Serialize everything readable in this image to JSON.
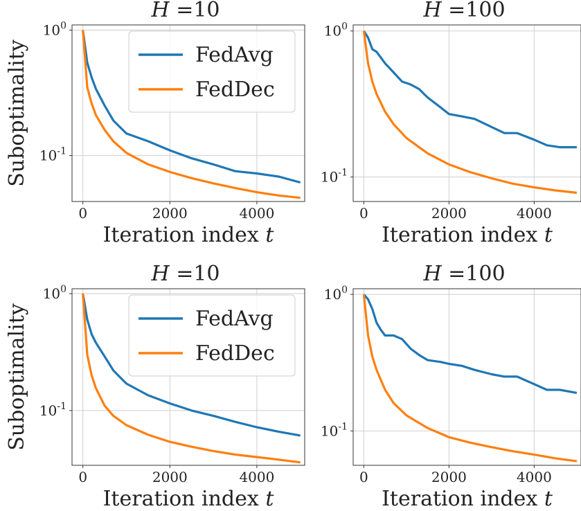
{
  "figure": {
    "ylabel_left": "Suboptimality",
    "colors": {
      "FedAvg": "#1f77b4",
      "FedDec": "#ff7f0e",
      "grid": "#cfcfcf"
    }
  },
  "chart_data": [
    {
      "type": "line",
      "title": "H =10",
      "xlabel": "Iteration index t",
      "ylabel": "Suboptimality",
      "yscale": "log",
      "xlim": [
        -250,
        5100
      ],
      "ylim": [
        0.043,
        1.1
      ],
      "xticks": [
        0,
        2000,
        4000
      ],
      "yticks": [
        {
          "value": 1,
          "label": "10^0"
        },
        {
          "value": 0.1,
          "label": "10^-1"
        }
      ],
      "grid": true,
      "legend": "top-right",
      "series": [
        {
          "name": "FedAvg",
          "color": "#1f77b4",
          "x": [
            0,
            100,
            200,
            300,
            500,
            700,
            1000,
            1500,
            2000,
            2500,
            3000,
            3500,
            4000,
            4500,
            5000
          ],
          "y": [
            1.0,
            0.55,
            0.42,
            0.34,
            0.25,
            0.19,
            0.15,
            0.13,
            0.11,
            0.095,
            0.085,
            0.075,
            0.072,
            0.068,
            0.061
          ]
        },
        {
          "name": "FedDec",
          "color": "#ff7f0e",
          "x": [
            0,
            100,
            200,
            300,
            500,
            700,
            1000,
            1500,
            2000,
            2500,
            3000,
            3500,
            4000,
            4500,
            5000
          ],
          "y": [
            1.0,
            0.35,
            0.26,
            0.21,
            0.16,
            0.13,
            0.105,
            0.085,
            0.074,
            0.066,
            0.06,
            0.055,
            0.051,
            0.048,
            0.046
          ]
        }
      ]
    },
    {
      "type": "line",
      "title": "H =100",
      "xlabel": "Iteration index t",
      "ylabel": "",
      "yscale": "log",
      "xlim": [
        -250,
        5100
      ],
      "ylim": [
        0.068,
        1.1
      ],
      "xticks": [
        0,
        2000,
        4000
      ],
      "yticks": [
        {
          "value": 1,
          "label": "10^0"
        },
        {
          "value": 0.1,
          "label": "10^-1"
        }
      ],
      "grid": true,
      "legend": "none",
      "series": [
        {
          "name": "FedAvg",
          "color": "#1f77b4",
          "x": [
            0,
            100,
            200,
            300,
            500,
            700,
            900,
            1100,
            1300,
            1500,
            1800,
            2000,
            2300,
            2600,
            3000,
            3300,
            3600,
            4000,
            4300,
            4600,
            5000
          ],
          "y": [
            1.0,
            0.9,
            0.75,
            0.72,
            0.6,
            0.52,
            0.45,
            0.43,
            0.4,
            0.35,
            0.3,
            0.27,
            0.26,
            0.25,
            0.22,
            0.2,
            0.2,
            0.18,
            0.165,
            0.16,
            0.16
          ]
        },
        {
          "name": "FedDec",
          "color": "#ff7f0e",
          "x": [
            0,
            100,
            200,
            300,
            500,
            700,
            1000,
            1500,
            2000,
            2500,
            3000,
            3500,
            4000,
            4500,
            5000
          ],
          "y": [
            1.0,
            0.6,
            0.45,
            0.37,
            0.28,
            0.23,
            0.185,
            0.145,
            0.122,
            0.108,
            0.098,
            0.09,
            0.085,
            0.081,
            0.078
          ]
        }
      ]
    },
    {
      "type": "line",
      "title": "H =10",
      "xlabel": "Iteration index t",
      "ylabel": "Suboptimality",
      "yscale": "log",
      "xlim": [
        -250,
        5100
      ],
      "ylim": [
        0.034,
        1.1
      ],
      "xticks": [
        0,
        2000,
        4000
      ],
      "yticks": [
        {
          "value": 1,
          "label": "10^0"
        },
        {
          "value": 0.1,
          "label": "10^-1"
        }
      ],
      "grid": true,
      "legend": "top-right",
      "series": [
        {
          "name": "FedAvg",
          "color": "#1f77b4",
          "x": [
            0,
            100,
            200,
            300,
            500,
            700,
            1000,
            1500,
            2000,
            2500,
            3000,
            3500,
            4000,
            4500,
            5000
          ],
          "y": [
            1.0,
            0.6,
            0.45,
            0.38,
            0.29,
            0.22,
            0.17,
            0.135,
            0.115,
            0.1,
            0.09,
            0.08,
            0.072,
            0.066,
            0.061
          ]
        },
        {
          "name": "FedDec",
          "color": "#ff7f0e",
          "x": [
            0,
            100,
            200,
            300,
            500,
            700,
            1000,
            1500,
            2000,
            2500,
            3000,
            3500,
            4000,
            4500,
            5000
          ],
          "y": [
            1.0,
            0.3,
            0.2,
            0.155,
            0.11,
            0.09,
            0.075,
            0.062,
            0.054,
            0.049,
            0.045,
            0.042,
            0.04,
            0.038,
            0.036
          ]
        }
      ]
    },
    {
      "type": "line",
      "title": "H =100",
      "xlabel": "Iteration index t",
      "ylabel": "",
      "yscale": "log",
      "xlim": [
        -250,
        5100
      ],
      "ylim": [
        0.056,
        1.1
      ],
      "xticks": [
        0,
        2000,
        4000
      ],
      "yticks": [
        {
          "value": 1,
          "label": "10^0"
        },
        {
          "value": 0.1,
          "label": "10^-1"
        }
      ],
      "grid": true,
      "legend": "none",
      "series": [
        {
          "name": "FedAvg",
          "color": "#1f77b4",
          "x": [
            0,
            100,
            200,
            300,
            400,
            500,
            700,
            900,
            1100,
            1300,
            1500,
            1800,
            2000,
            2300,
            2600,
            3000,
            3300,
            3600,
            4000,
            4300,
            4600,
            5000
          ],
          "y": [
            1.0,
            0.92,
            0.78,
            0.62,
            0.55,
            0.5,
            0.5,
            0.47,
            0.4,
            0.36,
            0.33,
            0.32,
            0.31,
            0.3,
            0.28,
            0.26,
            0.25,
            0.25,
            0.22,
            0.2,
            0.2,
            0.19
          ]
        },
        {
          "name": "FedDec",
          "color": "#ff7f0e",
          "x": [
            0,
            100,
            200,
            300,
            500,
            700,
            1000,
            1500,
            2000,
            2500,
            3000,
            3500,
            4000,
            4500,
            5000
          ],
          "y": [
            1.0,
            0.5,
            0.35,
            0.28,
            0.2,
            0.16,
            0.13,
            0.105,
            0.09,
            0.082,
            0.076,
            0.071,
            0.067,
            0.063,
            0.06
          ]
        }
      ]
    }
  ]
}
